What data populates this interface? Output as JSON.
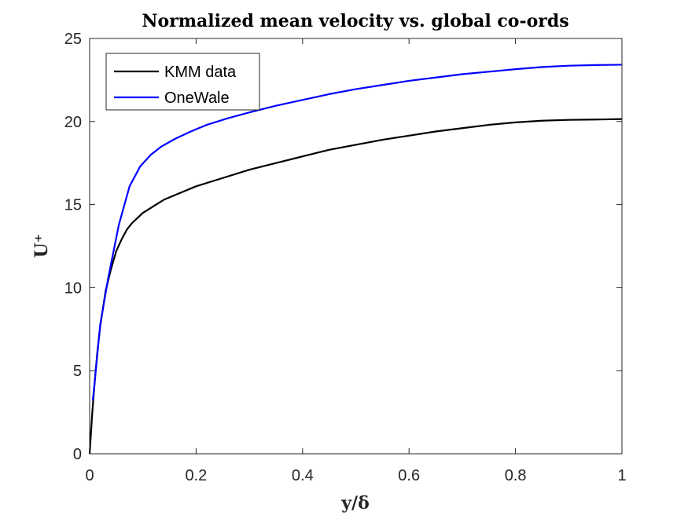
{
  "chart_data": {
    "type": "line",
    "title": "Normalized mean velocity vs. global co-ords",
    "xlabel": "y/δ",
    "ylabel": "U⁺",
    "xlim": [
      0,
      1
    ],
    "ylim": [
      0,
      25
    ],
    "xticks": [
      0,
      0.2,
      0.4,
      0.6,
      0.8,
      1
    ],
    "xtick_labels": [
      "0",
      "0.2",
      "0.4",
      "0.6",
      "0.8",
      "1"
    ],
    "yticks": [
      0,
      5,
      10,
      15,
      20,
      25
    ],
    "ytick_labels": [
      "0",
      "5",
      "10",
      "15",
      "20",
      "25"
    ],
    "grid": false,
    "legend_position": "top-left",
    "series": [
      {
        "name": "KMM data",
        "color": "#000000",
        "x": [
          0,
          0.005,
          0.01,
          0.015,
          0.02,
          0.03,
          0.04,
          0.05,
          0.06,
          0.07,
          0.08,
          0.09,
          0.1,
          0.12,
          0.14,
          0.17,
          0.2,
          0.25,
          0.3,
          0.35,
          0.4,
          0.45,
          0.5,
          0.55,
          0.6,
          0.65,
          0.7,
          0.75,
          0.8,
          0.85,
          0.9,
          0.95,
          1.0
        ],
        "y": [
          0,
          2.5,
          4.5,
          6.3,
          7.7,
          9.8,
          11.1,
          12.2,
          12.9,
          13.5,
          13.9,
          14.2,
          14.5,
          14.9,
          15.3,
          15.7,
          16.1,
          16.6,
          17.1,
          17.5,
          17.9,
          18.3,
          18.6,
          18.9,
          19.15,
          19.4,
          19.6,
          19.8,
          19.95,
          20.05,
          20.1,
          20.12,
          20.15
        ]
      },
      {
        "name": "OneWale",
        "color": "#0000FF",
        "x": [
          0.006,
          0.02,
          0.035,
          0.055,
          0.075,
          0.095,
          0.115,
          0.135,
          0.16,
          0.19,
          0.22,
          0.26,
          0.3,
          0.35,
          0.4,
          0.45,
          0.5,
          0.55,
          0.6,
          0.65,
          0.7,
          0.75,
          0.8,
          0.85,
          0.9,
          0.95,
          1.0
        ],
        "y": [
          3.2,
          7.8,
          10.6,
          13.8,
          16.1,
          17.3,
          18.0,
          18.5,
          18.95,
          19.4,
          19.8,
          20.2,
          20.55,
          20.95,
          21.3,
          21.65,
          21.95,
          22.2,
          22.45,
          22.65,
          22.85,
          23.0,
          23.15,
          23.28,
          23.36,
          23.4,
          23.42
        ]
      }
    ]
  }
}
